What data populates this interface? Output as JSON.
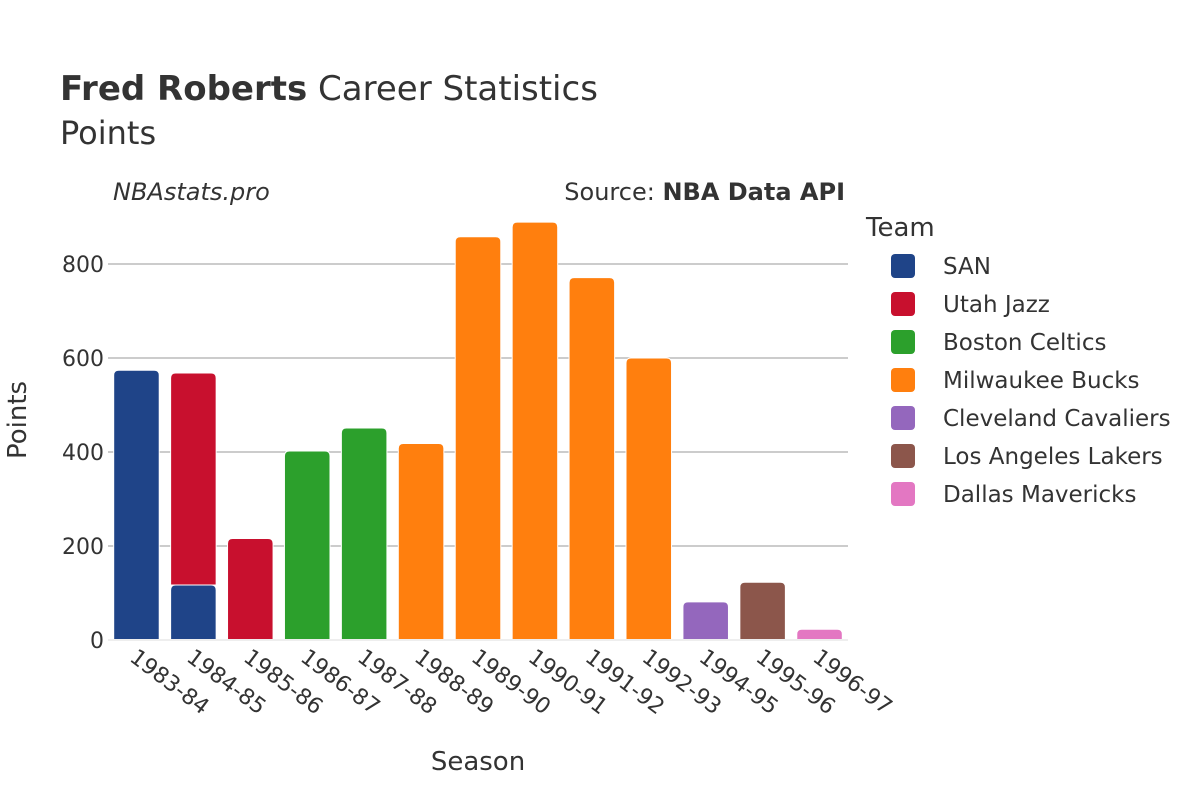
{
  "header": {
    "title_bold": "Fred Roberts",
    "title_rest": " Career Statistics",
    "subtitle": "Points",
    "watermark": "NBAstats.pro",
    "source_prefix": "Source: ",
    "source_name": "NBA Data API"
  },
  "chart_data": {
    "type": "bar",
    "stacked": true,
    "xlabel": "Season",
    "ylabel": "Points",
    "ylim": [
      0,
      900
    ],
    "yticks": [
      0,
      200,
      400,
      600,
      800
    ],
    "grid": true,
    "legend_title": "Team",
    "legend_position": "right",
    "categories": [
      "1983-84",
      "1984-85",
      "1985-86",
      "1986-87",
      "1987-88",
      "1988-89",
      "1989-90",
      "1990-91",
      "1991-92",
      "1992-93",
      "1994-95",
      "1995-96",
      "1996-97"
    ],
    "series": [
      {
        "name": "SAN",
        "color": "#1f4488",
        "values": [
          574,
          117,
          null,
          null,
          null,
          null,
          null,
          null,
          null,
          null,
          null,
          null,
          null
        ]
      },
      {
        "name": "Utah Jazz",
        "color": "#c8102e",
        "values": [
          null,
          451,
          216,
          null,
          null,
          null,
          null,
          null,
          null,
          null,
          null,
          null,
          null
        ]
      },
      {
        "name": "Boston Celtics",
        "color": "#2ca02c",
        "values": [
          null,
          null,
          null,
          402,
          451,
          null,
          null,
          null,
          null,
          null,
          null,
          null,
          null
        ]
      },
      {
        "name": "Milwaukee Bucks",
        "color": "#ff7f0e",
        "values": [
          null,
          null,
          null,
          null,
          null,
          418,
          858,
          889,
          771,
          600,
          null,
          null,
          null
        ]
      },
      {
        "name": "Cleveland Cavaliers",
        "color": "#9467bd",
        "values": [
          null,
          null,
          null,
          null,
          null,
          null,
          null,
          null,
          null,
          null,
          81,
          null,
          null
        ]
      },
      {
        "name": "Los Angeles Lakers",
        "color": "#8c564b",
        "values": [
          null,
          null,
          null,
          null,
          null,
          null,
          null,
          null,
          null,
          null,
          null,
          123,
          null
        ]
      },
      {
        "name": "Dallas Mavericks",
        "color": "#e377c2",
        "values": [
          null,
          null,
          null,
          null,
          null,
          null,
          null,
          null,
          null,
          null,
          null,
          null,
          23
        ]
      }
    ]
  }
}
